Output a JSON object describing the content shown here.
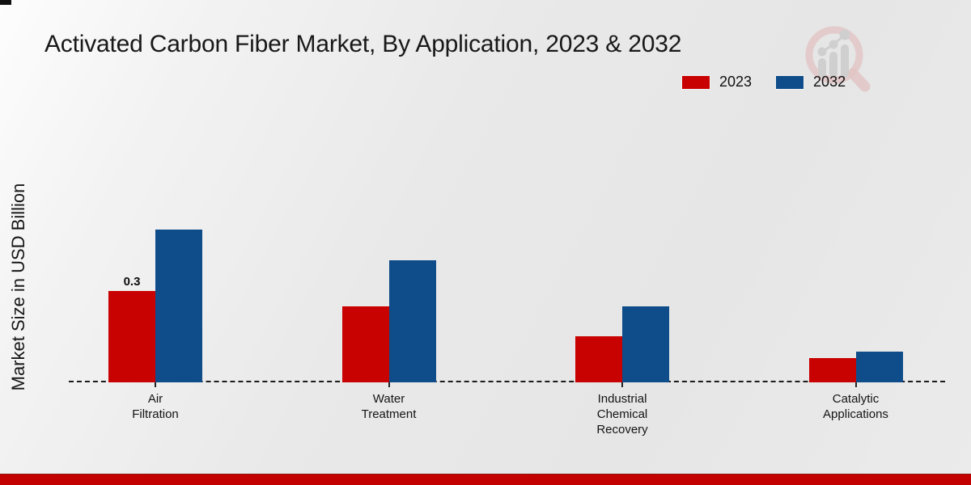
{
  "header": {
    "title": "Activated Carbon Fiber Market, By Application, 2023 & 2032"
  },
  "y_axis": {
    "label": "Market Size in USD Billion"
  },
  "legend": {
    "items": [
      {
        "label": "2023",
        "color": "#c80101"
      },
      {
        "label": "2032",
        "color": "#0f4d8a"
      }
    ]
  },
  "annotations": {
    "labeled_value": "0.3"
  },
  "chart_data": {
    "type": "bar",
    "title": "Activated Carbon Fiber Market, By Application, 2023 & 2032",
    "xlabel": "",
    "ylabel": "Market Size in USD Billion",
    "categories": [
      "Air\nFiltration",
      "Water\nTreatment",
      "Industrial\nChemical\nRecovery",
      "Catalytic\nApplications"
    ],
    "series": [
      {
        "name": "2023",
        "color": "#c80101",
        "values": [
          0.3,
          0.25,
          0.15,
          0.08
        ]
      },
      {
        "name": "2032",
        "color": "#0f4d8a",
        "values": [
          0.5,
          0.4,
          0.25,
          0.1
        ]
      }
    ],
    "bar_labels": [
      [
        "0.3",
        "",
        "",
        ""
      ],
      [
        "",
        "",
        "",
        ""
      ]
    ],
    "ylim": [
      0,
      0.55
    ],
    "grid": false,
    "axis_style": "dashed-baseline-only",
    "legend_position": "top-right"
  },
  "branding": {
    "logo": "magnifier-bar-chart-logo",
    "footer_color": "#c30101"
  }
}
